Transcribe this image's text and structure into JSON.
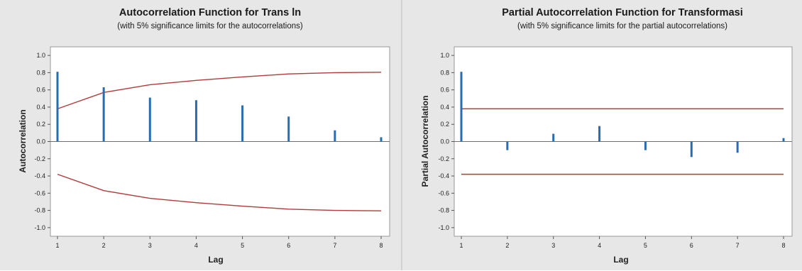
{
  "chart_data": [
    {
      "type": "bar",
      "title": "Autocorrelation Function for Trans ln",
      "subtitle": "(with 5% significance limits for the autocorrelations)",
      "xlabel": "Lag",
      "ylabel": "Autocorrelation",
      "x": [
        1,
        2,
        3,
        4,
        5,
        6,
        7,
        8
      ],
      "values": [
        0.81,
        0.63,
        0.51,
        0.48,
        0.42,
        0.29,
        0.13,
        0.05
      ],
      "limits_upper": [
        0.38,
        0.57,
        0.66,
        0.71,
        0.75,
        0.785,
        0.8,
        0.805
      ],
      "limits_lower": [
        -0.38,
        -0.57,
        -0.66,
        -0.71,
        -0.75,
        -0.785,
        -0.8,
        -0.805
      ],
      "ylim": [
        -1.1,
        1.1
      ],
      "yticks": [
        "1.0",
        "0.8",
        "0.6",
        "0.4",
        "0.2",
        "0.0",
        "-0.2",
        "-0.4",
        "-0.6",
        "-0.8",
        "-1.0"
      ],
      "ytick_values": [
        1.0,
        0.8,
        0.6,
        0.4,
        0.2,
        0.0,
        -0.2,
        -0.4,
        -0.6,
        -0.8,
        -1.0
      ],
      "xticks": [
        "1",
        "2",
        "3",
        "4",
        "5",
        "6",
        "7",
        "8"
      ],
      "grid": false,
      "bar_color": "#2a6cb0",
      "limit_color": "#b33a3a"
    },
    {
      "type": "bar",
      "title": "Partial Autocorrelation Function for Transformasi",
      "subtitle": "(with 5% significance limits for the partial autocorrelations)",
      "xlabel": "Lag",
      "ylabel": "Partial Autocorrelation",
      "x": [
        1,
        2,
        3,
        4,
        5,
        6,
        7,
        8
      ],
      "values": [
        0.81,
        -0.1,
        0.09,
        0.18,
        -0.1,
        -0.18,
        -0.13,
        0.04
      ],
      "limits_upper": [
        0.38,
        0.38,
        0.38,
        0.38,
        0.38,
        0.38,
        0.38,
        0.38
      ],
      "limits_lower": [
        -0.38,
        -0.38,
        -0.38,
        -0.38,
        -0.38,
        -0.38,
        -0.38,
        -0.38
      ],
      "ylim": [
        -1.1,
        1.1
      ],
      "yticks": [
        "1.0",
        "0.8",
        "0.6",
        "0.4",
        "0.2",
        "0.0",
        "-0.2",
        "-0.4",
        "-0.6",
        "-0.8",
        "-1.0"
      ],
      "ytick_values": [
        1.0,
        0.8,
        0.6,
        0.4,
        0.2,
        0.0,
        -0.2,
        -0.4,
        -0.6,
        -0.8,
        -1.0
      ],
      "xticks": [
        "1",
        "2",
        "3",
        "4",
        "5",
        "6",
        "7",
        "8"
      ],
      "grid": false,
      "bar_color": "#2a6cb0",
      "limit_color": "#b33a3a"
    }
  ]
}
